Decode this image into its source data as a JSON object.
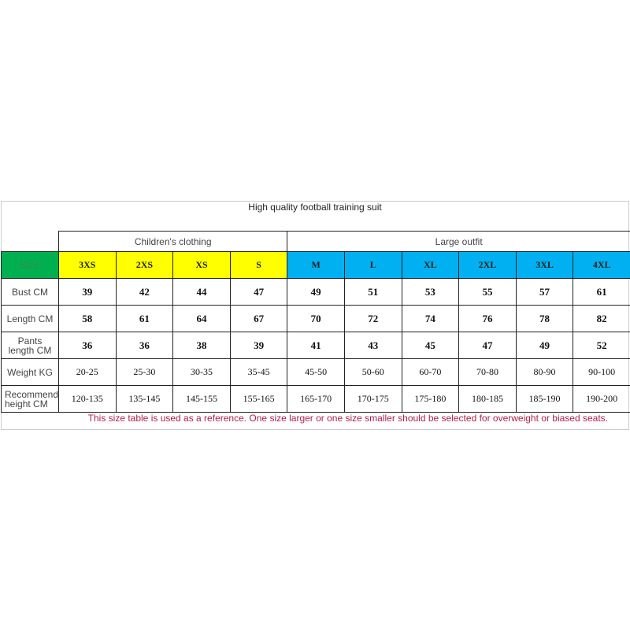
{
  "title": "High quality football training suit",
  "groups": {
    "children": "Children's clothing",
    "large": "Large outfit"
  },
  "colors": {
    "size_label_bg": "#00b050",
    "children_bg": "#ffff00",
    "large_bg": "#00b0f0",
    "note": "#b0204a"
  },
  "size_label": "Size",
  "sizes": [
    "3XS",
    "2XS",
    "XS",
    "S",
    "M",
    "L",
    "XL",
    "2XL",
    "3XL",
    "4XL"
  ],
  "rows": [
    {
      "label": "Bust CM",
      "values": [
        "39",
        "42",
        "44",
        "47",
        "49",
        "51",
        "53",
        "55",
        "57",
        "61"
      ]
    },
    {
      "label": "Length CM",
      "values": [
        "58",
        "61",
        "64",
        "67",
        "70",
        "72",
        "74",
        "76",
        "78",
        "82"
      ]
    },
    {
      "label": "Pants length CM",
      "values": [
        "36",
        "36",
        "38",
        "39",
        "41",
        "43",
        "45",
        "47",
        "49",
        "52"
      ]
    },
    {
      "label": "Weight KG",
      "values": [
        "20-25",
        "25-30",
        "30-35",
        "35-45",
        "45-50",
        "50-60",
        "60-70",
        "70-80",
        "80-90",
        "90-100"
      ]
    },
    {
      "label": "Recommended height CM",
      "values": [
        "120-135",
        "135-145",
        "145-155",
        "155-165",
        "165-170",
        "170-175",
        "175-180",
        "180-185",
        "185-190",
        "190-200"
      ]
    }
  ],
  "note": "This size table is used as a reference. One size larger or one size smaller should be selected for overweight or biased seats."
}
